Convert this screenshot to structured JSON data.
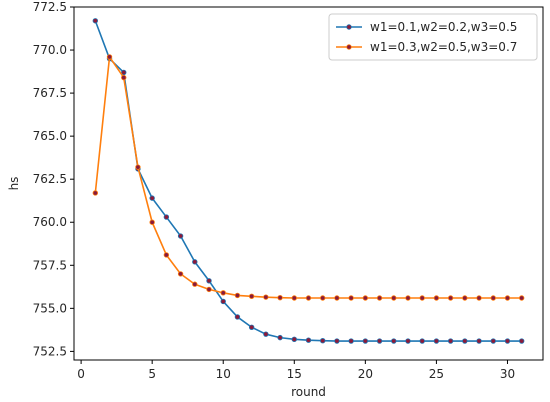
{
  "chart_data": {
    "type": "line",
    "title": "",
    "xlabel": "round",
    "ylabel": "hs",
    "xlim": [
      -0.5,
      32.5
    ],
    "ylim": [
      752.0,
      772.5
    ],
    "x_ticks": [
      0,
      5,
      10,
      15,
      20,
      25,
      30
    ],
    "x_tick_labels": [
      "0",
      "5",
      "10",
      "15",
      "20",
      "25",
      "30"
    ],
    "y_ticks": [
      752.5,
      755.0,
      757.5,
      760.0,
      762.5,
      765.0,
      767.5,
      770.0,
      772.5
    ],
    "y_tick_labels": [
      "752.5",
      "755.0",
      "757.5",
      "760.0",
      "762.5",
      "765.0",
      "767.5",
      "770.0",
      "772.5"
    ],
    "grid": false,
    "legend_position": "top-right",
    "marker_color": "#8b1a3a",
    "x": [
      1,
      2,
      3,
      4,
      5,
      6,
      7,
      8,
      9,
      10,
      11,
      12,
      13,
      14,
      15,
      16,
      17,
      18,
      19,
      20,
      21,
      22,
      23,
      24,
      25,
      26,
      27,
      28,
      29,
      30,
      31
    ],
    "series": [
      {
        "name": "w1=0.1,w2=0.2,w3=0.5",
        "color": "#1f77b4",
        "values": [
          771.7,
          769.5,
          768.7,
          763.1,
          761.4,
          760.3,
          759.2,
          757.7,
          756.6,
          755.4,
          754.5,
          753.9,
          753.5,
          753.3,
          753.2,
          753.15,
          753.12,
          753.1,
          753.1,
          753.1,
          753.1,
          753.1,
          753.1,
          753.1,
          753.1,
          753.1,
          753.1,
          753.1,
          753.1,
          753.1,
          753.1
        ]
      },
      {
        "name": "w1=0.3,w2=0.5,w3=0.7",
        "color": "#ff7f0e",
        "values": [
          761.7,
          769.6,
          768.4,
          763.2,
          760.0,
          758.1,
          757.0,
          756.4,
          756.1,
          755.9,
          755.75,
          755.7,
          755.65,
          755.62,
          755.6,
          755.6,
          755.6,
          755.6,
          755.6,
          755.6,
          755.6,
          755.6,
          755.6,
          755.6,
          755.6,
          755.6,
          755.6,
          755.6,
          755.6,
          755.6,
          755.6
        ]
      }
    ]
  }
}
